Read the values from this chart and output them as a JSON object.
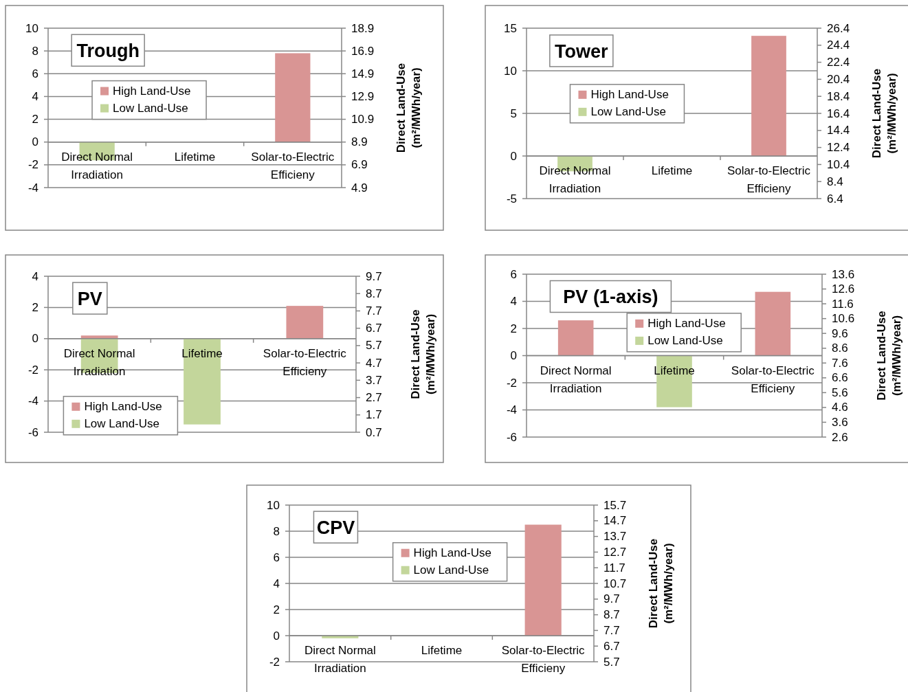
{
  "chart_data": [
    {
      "type": "bar",
      "title": "Trough",
      "categories": [
        "Direct Normal Irradiation",
        "Lifetime",
        "Solar-to-Electric Efficieny"
      ],
      "series": [
        {
          "name": "High Land-Use",
          "color": "#d99594",
          "values": [
            null,
            null,
            7.8
          ]
        },
        {
          "name": "Low Land-Use",
          "color": "#c3d69b",
          "values": [
            -1.6,
            null,
            null
          ]
        }
      ],
      "ylim": [
        -4,
        10
      ],
      "yticks": [
        -4,
        -2,
        0,
        2,
        4,
        6,
        8,
        10
      ],
      "y2lim": [
        4.9,
        18.9
      ],
      "y2ticks": [
        4.9,
        6.9,
        8.9,
        10.9,
        12.9,
        14.9,
        16.9,
        18.9
      ],
      "y2label": "Direct Land-Use\n(m²/MWh/year)",
      "grid": "y",
      "legend": "top left"
    },
    {
      "type": "bar",
      "title": "Tower",
      "categories": [
        "Direct Normal Irradiation",
        "Lifetime",
        "Solar-to-Electric Efficieny"
      ],
      "series": [
        {
          "name": "High Land-Use",
          "color": "#d99594",
          "values": [
            null,
            null,
            14.1
          ]
        },
        {
          "name": "Low Land-Use",
          "color": "#c3d69b",
          "values": [
            -1.8,
            null,
            null
          ]
        }
      ],
      "ylim": [
        -5,
        15
      ],
      "yticks": [
        -5,
        0,
        5,
        10,
        15
      ],
      "y2lim": [
        6.4,
        26.4
      ],
      "y2ticks": [
        6.4,
        8.4,
        10.4,
        12.4,
        14.4,
        16.4,
        18.4,
        20.4,
        22.4,
        24.4,
        26.4
      ],
      "y2label": "Direct Land-Use\n(m²/MWh/year)",
      "grid": "y",
      "legend": "top left"
    },
    {
      "type": "bar",
      "title": "PV",
      "categories": [
        "Direct Normal Irradiation",
        "Lifetime",
        "Solar-to-Electric Efficieny"
      ],
      "series": [
        {
          "name": "High Land-Use",
          "color": "#d99594",
          "values": [
            0.2,
            null,
            2.1
          ]
        },
        {
          "name": "Low Land-Use",
          "color": "#c3d69b",
          "values": [
            -2.2,
            -5.5,
            null
          ]
        }
      ],
      "ylim": [
        -6,
        4
      ],
      "yticks": [
        -6,
        -4,
        -2,
        0,
        2,
        4
      ],
      "y2lim": [
        0.7,
        9.7
      ],
      "y2ticks": [
        0.7,
        1.7,
        2.7,
        3.7,
        4.7,
        5.7,
        6.7,
        7.7,
        8.7,
        9.7
      ],
      "y2label": "Direct Land-Use\n(m²/MWh/year)",
      "grid": "y",
      "legend": "bottom left"
    },
    {
      "type": "bar",
      "title": "PV (1-axis)",
      "categories": [
        "Direct Normal Irradiation",
        "Lifetime",
        "Solar-to-Electric Efficieny"
      ],
      "series": [
        {
          "name": "High Land-Use",
          "color": "#d99594",
          "values": [
            2.6,
            null,
            4.7
          ]
        },
        {
          "name": "Low Land-Use",
          "color": "#c3d69b",
          "values": [
            null,
            -3.8,
            null
          ]
        }
      ],
      "ylim": [
        -6,
        6
      ],
      "yticks": [
        -6,
        -4,
        -2,
        0,
        2,
        4,
        6
      ],
      "y2lim": [
        2.6,
        13.6
      ],
      "y2ticks": [
        2.6,
        3.6,
        4.6,
        5.6,
        6.6,
        7.6,
        8.6,
        9.6,
        10.6,
        11.6,
        12.6,
        13.6
      ],
      "y2label": "Direct Land-Use\n(m²/MWh/year)",
      "grid": "y",
      "legend": "top"
    },
    {
      "type": "bar",
      "title": "CPV",
      "categories": [
        "Direct Normal Irradiation",
        "Lifetime",
        "Solar-to-Electric Efficieny"
      ],
      "series": [
        {
          "name": "High Land-Use",
          "color": "#d99594",
          "values": [
            null,
            null,
            8.5
          ]
        },
        {
          "name": "Low Land-Use",
          "color": "#c3d69b",
          "values": [
            -0.2,
            null,
            null
          ]
        }
      ],
      "ylim": [
        -2,
        10
      ],
      "yticks": [
        -2,
        0,
        2,
        4,
        6,
        8,
        10
      ],
      "y2lim": [
        5.7,
        15.7
      ],
      "y2ticks": [
        5.7,
        6.7,
        7.7,
        8.7,
        9.7,
        10.7,
        11.7,
        12.7,
        13.7,
        14.7,
        15.7
      ],
      "y2label": "Direct Land-Use\n(m²/MWh/year)",
      "grid": "y",
      "legend": "top"
    }
  ]
}
